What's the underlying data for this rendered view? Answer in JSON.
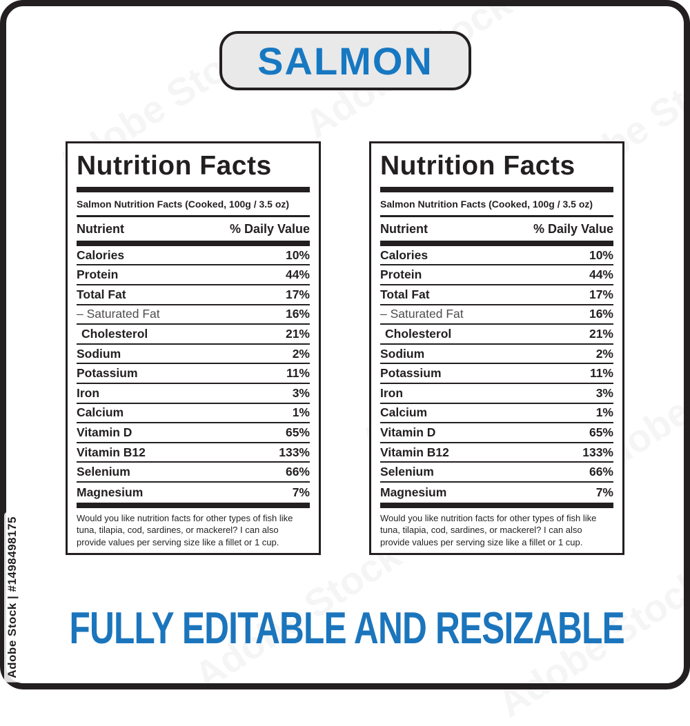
{
  "watermark": {
    "side_text": "Adobe Stock | #1498498175",
    "diagonal_text": "Adobe Stock"
  },
  "title_badge": {
    "label": "SALMON",
    "text_color": "#1778c2",
    "background": "#e9e9e9"
  },
  "footer_banner": {
    "label": "FULLY EDITABLE AND RESIZABLE",
    "color": "#1b75bc"
  },
  "panels": [
    {
      "title": "Nutrition Facts",
      "subtitle": "Salmon Nutrition Facts (Cooked, 100g / 3.5 oz)",
      "columns": {
        "nutrient": "Nutrient",
        "daily_value": "% Daily Value"
      },
      "rows": [
        {
          "nutrient": "Calories",
          "value": "10%"
        },
        {
          "nutrient": "Protein",
          "value": "44%"
        },
        {
          "nutrient": "Total Fat",
          "value": "17%"
        },
        {
          "nutrient": "– Saturated Fat",
          "value": "16%",
          "muted": true
        },
        {
          "nutrient": "Cholesterol",
          "value": "21%",
          "indent": true
        },
        {
          "nutrient": "Sodium",
          "value": "2%"
        },
        {
          "nutrient": "Potassium",
          "value": "11%"
        },
        {
          "nutrient": "Iron",
          "value": "3%"
        },
        {
          "nutrient": "Calcium",
          "value": "1%"
        },
        {
          "nutrient": "Vitamin D",
          "value": "65%"
        },
        {
          "nutrient": "Vitamin B12",
          "value": "133%"
        },
        {
          "nutrient": "Selenium",
          "value": "66%"
        },
        {
          "nutrient": "Magnesium",
          "value": "7%"
        }
      ],
      "note": "Would you like nutrition facts for other types of fish like tuna, tilapia, cod, sardines, or mackerel? I can also provide values per serving size like a fillet or 1 cup."
    },
    {
      "title": "Nutrition Facts",
      "subtitle": "Salmon Nutrition Facts (Cooked, 100g / 3.5 oz)",
      "columns": {
        "nutrient": "Nutrient",
        "daily_value": "% Daily Value"
      },
      "rows": [
        {
          "nutrient": "Calories",
          "value": "10%"
        },
        {
          "nutrient": "Protein",
          "value": "44%"
        },
        {
          "nutrient": "Total Fat",
          "value": "17%"
        },
        {
          "nutrient": "– Saturated Fat",
          "value": "16%",
          "muted": true
        },
        {
          "nutrient": "Cholesterol",
          "value": "21%",
          "indent": true
        },
        {
          "nutrient": "Sodium",
          "value": "2%"
        },
        {
          "nutrient": "Potassium",
          "value": "11%"
        },
        {
          "nutrient": "Iron",
          "value": "3%"
        },
        {
          "nutrient": "Calcium",
          "value": "1%"
        },
        {
          "nutrient": "Vitamin D",
          "value": "65%"
        },
        {
          "nutrient": "Vitamin B12",
          "value": "133%"
        },
        {
          "nutrient": "Selenium",
          "value": "66%"
        },
        {
          "nutrient": "Magnesium",
          "value": "7%"
        }
      ],
      "note": "Would you like nutrition facts for other types of fish like tuna, tilapia, cod, sardines, or mackerel? I can also provide values per serving size like a fillet or 1 cup."
    }
  ]
}
